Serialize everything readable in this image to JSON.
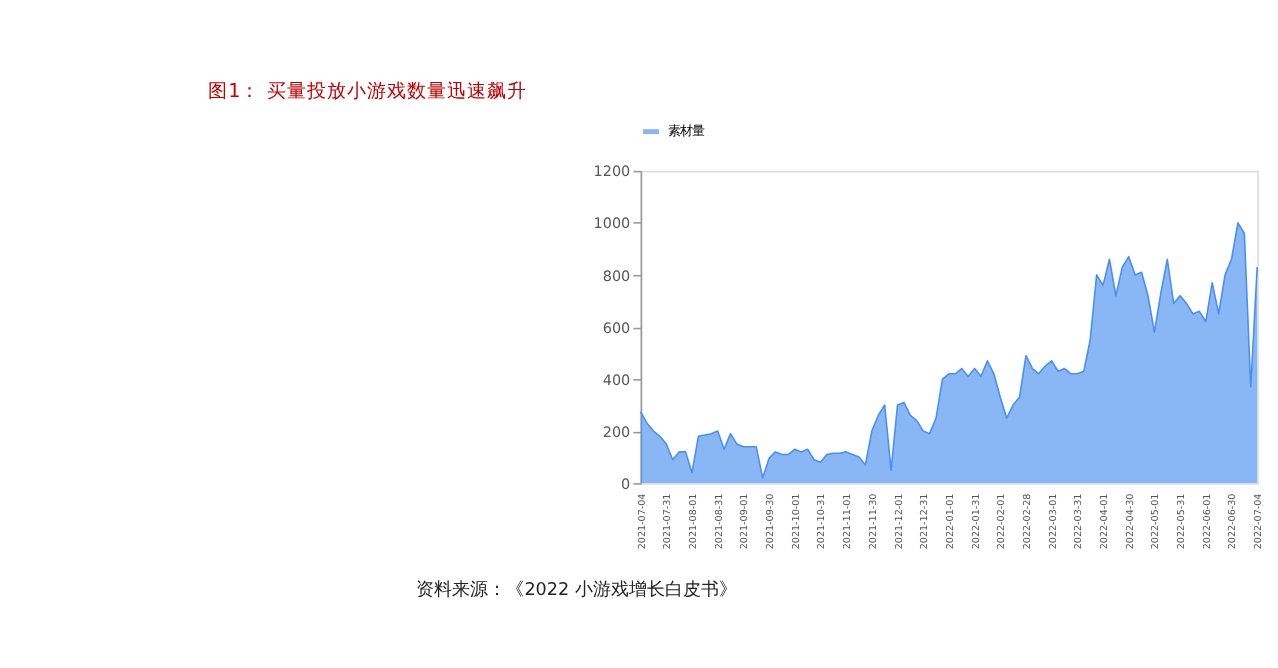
{
  "chart_data": {
    "type": "area",
    "title": "图1：  买量投放小游戏数量迅速飙升",
    "annotations": [
      "资料来源：《2022 小游戏增长白皮书》"
    ],
    "categories": [
      "2021-07-04",
      null,
      null,
      null,
      "2021-07-31",
      null,
      null,
      null,
      "2021-08-01",
      null,
      null,
      null,
      "2021-08-31",
      null,
      null,
      null,
      "2021-09-01",
      null,
      null,
      null,
      "2021-09-30",
      null,
      null,
      null,
      "2021-10-01",
      null,
      null,
      null,
      "2021-10-31",
      null,
      null,
      null,
      "2021-11-01",
      null,
      null,
      null,
      "2021-11-30",
      null,
      null,
      null,
      "2021-12-01",
      null,
      null,
      null,
      "2021-12-31",
      null,
      null,
      null,
      "2022-01-01",
      null,
      null,
      null,
      "2022-01-31",
      null,
      null,
      null,
      "2022-02-01",
      null,
      null,
      null,
      "2022-02-28",
      null,
      null,
      null,
      "2022-03-01",
      null,
      null,
      null,
      "2022-03-31",
      null,
      null,
      null,
      "2022-04-01",
      null,
      null,
      null,
      "2022-04-30",
      null,
      null,
      null,
      "2022-05-01",
      null,
      null,
      null,
      "2022-05-31",
      null,
      null,
      null,
      "2022-06-01",
      null,
      null,
      null,
      "2022-06-30",
      null,
      null,
      null,
      "2022-07-04"
    ],
    "series": [
      {
        "name": "素材量",
        "color": "#4a90f0",
        "values": [
          275,
          230,
          200,
          180,
          150,
          90,
          120,
          120,
          40,
          180,
          185,
          190,
          200,
          130,
          190,
          150,
          140,
          140,
          140,
          20,
          95,
          120,
          110,
          110,
          130,
          120,
          130,
          90,
          80,
          110,
          115,
          115,
          120,
          110,
          100,
          70,
          200,
          260,
          300,
          50,
          300,
          310,
          260,
          240,
          200,
          190,
          250,
          400,
          420,
          420,
          440,
          410,
          440,
          410,
          470,
          420,
          330,
          250,
          300,
          330,
          490,
          440,
          420,
          450,
          470,
          430,
          440,
          420,
          420,
          430,
          550,
          800,
          760,
          860,
          720,
          830,
          870,
          800,
          810,
          720,
          580,
          730,
          860,
          690,
          720,
          690,
          650,
          660,
          620,
          770,
          650,
          800,
          860,
          1000,
          960,
          370,
          830
        ]
      }
    ],
    "ylim": [
      0,
      1200
    ],
    "yticks": [
      0,
      200,
      400,
      600,
      800,
      1000,
      1200
    ],
    "grid": false,
    "legend": "top"
  }
}
